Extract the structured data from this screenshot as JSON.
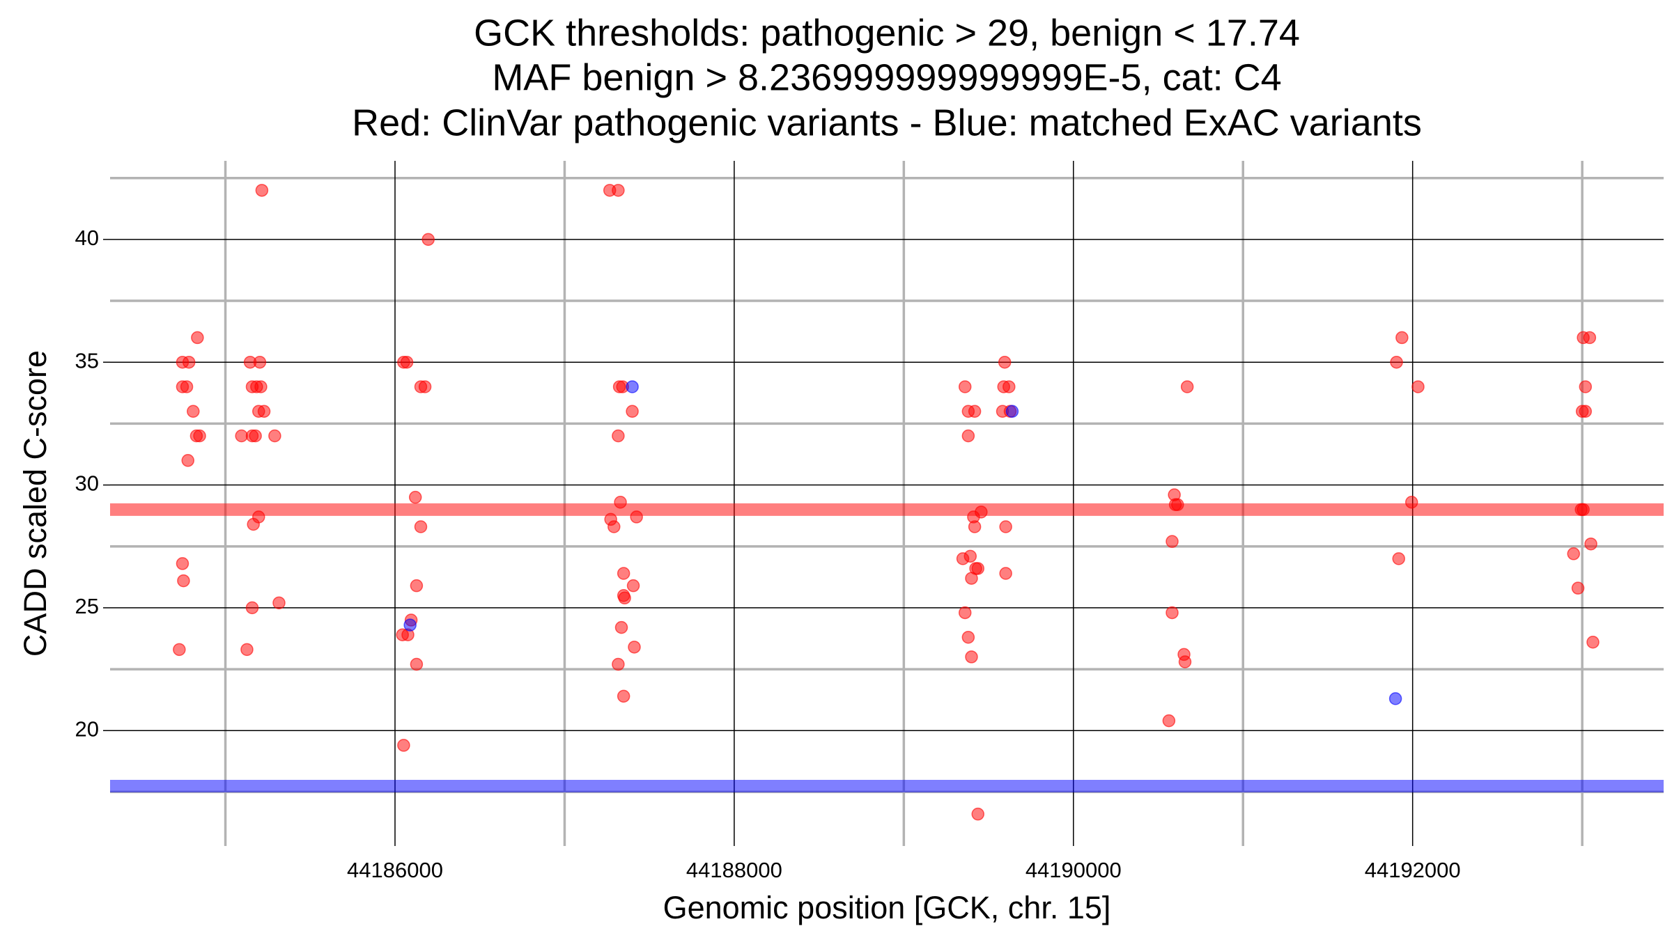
{
  "chart_data": {
    "type": "scatter",
    "title": [
      "GCK thresholds: pathogenic > 29, benign < 17.74",
      "MAF benign > 8.236999999999999E-5, cat: C4",
      "Red: ClinVar pathogenic variants - Blue: matched ExAC variants"
    ],
    "x_label": "Genomic position [GCK, chr. 15]",
    "y_label": "CADD scaled C-score",
    "xlim": [
      44184320,
      44193480
    ],
    "ylim": [
      15.3,
      43.2
    ],
    "xticks": [
      44186000,
      44188000,
      44190000,
      44192000
    ],
    "yticks": [
      20,
      25,
      30,
      35,
      40
    ],
    "x_minor_grid": [
      44185000,
      44187000,
      44189000,
      44191000,
      44193000
    ],
    "y_minor_grid": [
      17.5,
      22.5,
      27.5,
      32.5,
      37.5,
      42.5
    ],
    "hlines": [
      {
        "value": 29,
        "color": "#ff0000"
      },
      {
        "value": 17.74,
        "color": "#0000ff"
      }
    ],
    "series": [
      {
        "color": "#ff0000",
        "x": [
          44184728,
          44184747,
          44184753,
          44184747,
          44184785,
          44184747,
          44184772,
          44184779,
          44184810,
          44184829,
          44184848,
          44184835,
          44185215,
          44185095,
          44185158,
          44185177,
          44185146,
          44185203,
          44185158,
          44185184,
          44185209,
          44185196,
          44185228,
          44185291,
          44185196,
          44185165,
          44185158,
          44185316,
          44185127,
          44186196,
          44186051,
          44186070,
          44186152,
          44186177,
          44186120,
          44186152,
          44186127,
          44186095,
          44186044,
          44186076,
          44186127,
          44186051,
          44187266,
          44187316,
          44187323,
          44187342,
          44187399,
          44187316,
          44187329,
          44187272,
          44187291,
          44187424,
          44187348,
          44187405,
          44187348,
          44187354,
          44187335,
          44187411,
          44187316,
          44187348,
          44189361,
          44189595,
          44189589,
          44189620,
          44189380,
          44189418,
          44189582,
          44189627,
          44189380,
          44189456,
          44189411,
          44189418,
          44189601,
          44189348,
          44189392,
          44189424,
          44189437,
          44189399,
          44189601,
          44189361,
          44189380,
          44189399,
          44189437,
          44190671,
          44190595,
          44190601,
          44190614,
          44190582,
          44190582,
          44190652,
          44190658,
          44190563,
          44191937,
          44191905,
          44192032,
          44191994,
          44191918,
          44193006,
          44193044,
          44193019,
          44193000,
          44193019,
          44192994,
          44193006,
          44192949,
          44193051,
          44192975,
          44193063
        ],
        "values": [
          23.3,
          26.8,
          26.1,
          35,
          35,
          34,
          34,
          31,
          33,
          32,
          32,
          36,
          42,
          32,
          32,
          32,
          35,
          35,
          34,
          34,
          34,
          33,
          33,
          32,
          28.7,
          28.4,
          25,
          25.2,
          23.3,
          40,
          35,
          35,
          34,
          34,
          29.5,
          28.3,
          25.9,
          24.5,
          23.9,
          23.9,
          22.7,
          19.4,
          42,
          42,
          34,
          34,
          33,
          32,
          29.3,
          28.6,
          28.3,
          28.7,
          26.4,
          25.9,
          25.5,
          25.4,
          24.2,
          23.4,
          22.7,
          21.4,
          34,
          35,
          34,
          34,
          33,
          33,
          33,
          33,
          32,
          28.9,
          28.7,
          28.3,
          28.3,
          27,
          27.1,
          26.6,
          26.6,
          26.2,
          26.4,
          24.8,
          23.8,
          23,
          16.6,
          34,
          29.6,
          29.2,
          29.2,
          27.7,
          24.8,
          23.1,
          22.8,
          20.4,
          36,
          35,
          34,
          29.3,
          27,
          36,
          36,
          34,
          33,
          33,
          29,
          29,
          27.2,
          27.6,
          25.8,
          23.6
        ]
      },
      {
        "color": "#0000ff",
        "x": [
          44186089,
          44187399,
          44189639,
          44191899
        ],
        "values": [
          24.3,
          34,
          33,
          21.3
        ]
      }
    ]
  }
}
